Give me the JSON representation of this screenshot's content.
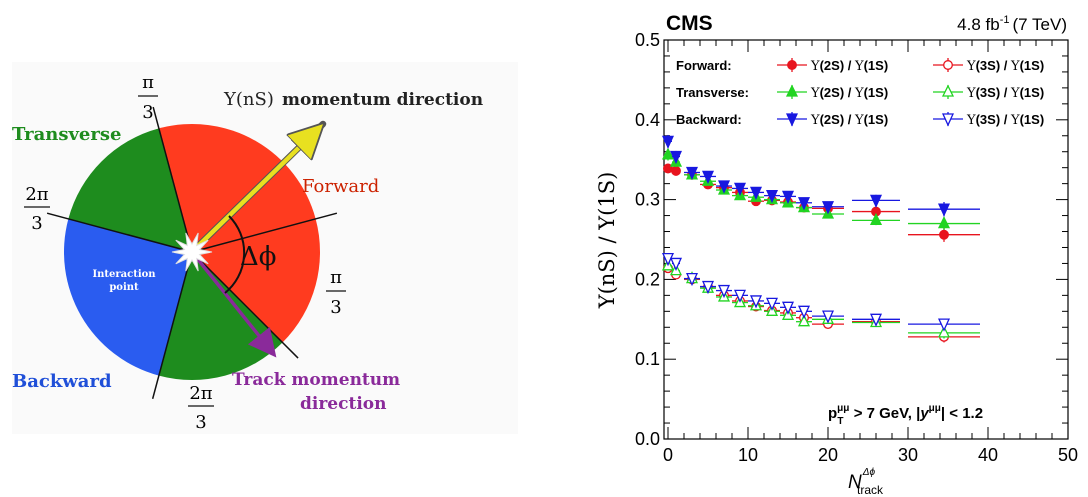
{
  "diagram": {
    "sectors": {
      "forward": "Forward",
      "transverse": "Transverse",
      "backward": "Backward"
    },
    "center_label": [
      "Interaction",
      "point"
    ],
    "delta_phi": "Δϕ",
    "upsilon_arrow": {
      "symbol": "Υ(nS)",
      "text": "momentum direction"
    },
    "track_arrow": [
      "Track momentum",
      "direction"
    ],
    "angles": {
      "pi": "π",
      "two_pi": "2π",
      "three": "3"
    },
    "colors": {
      "forward": "#ff3b1f",
      "transverse": "#1e8c1e",
      "backward": "#2a5cf0",
      "upsilon_arrow": "#e8e020",
      "track_arrow": "#8a2a9a"
    }
  },
  "chart_data": {
    "type": "scatter",
    "experiment": "CMS",
    "lumi": {
      "value": "4.8 fb",
      "exp": "-1",
      "energy": "(7 TeV)"
    },
    "ylabel": "Υ(nS) / Υ(1S)",
    "xlabel": {
      "main": "N",
      "sup": "Δϕ",
      "sub": "track"
    },
    "xlim": [
      -0.5,
      50
    ],
    "ylim": [
      0,
      0.5
    ],
    "x_ticks": [
      0,
      10,
      20,
      30,
      40,
      50
    ],
    "y_ticks": [
      0.0,
      0.1,
      0.2,
      0.3,
      0.4,
      0.5
    ],
    "y_tick_labels": [
      "0.0",
      "0.1",
      "0.2",
      "0.3",
      "0.4",
      "0.5"
    ],
    "cut_label": {
      "p": "p",
      "pSub": "T",
      "pSup": "μμ",
      "mid": " > 7 GeV,  |",
      "y": "y",
      "ySup": "μμ",
      "end": "| < 1.2"
    },
    "legend": {
      "rows": [
        {
          "label": "Forward:",
          "color": "#e8141e"
        },
        {
          "label": "Transverse:",
          "color": "#22d422"
        },
        {
          "label": "Backward:",
          "color": "#1818e0"
        }
      ],
      "ratio2S": {
        "a": "Υ",
        "b": "(2S)",
        "c": " / ",
        "d": "Υ",
        "e": "(1S)"
      },
      "ratio3S": {
        "a": "Υ",
        "b": "(3S)",
        "c": " / ",
        "d": "Υ",
        "e": "(1S)"
      }
    },
    "series": [
      {
        "name": "Forward Υ(2S)/Υ(1S)",
        "color": "#e8141e",
        "marker": "circle-filled",
        "x": [
          0,
          1,
          3,
          5,
          7,
          9,
          11,
          13,
          15,
          17,
          20,
          26,
          34.5
        ],
        "y": [
          0.339,
          0.336,
          0.331,
          0.319,
          0.315,
          0.309,
          0.298,
          0.299,
          0.297,
          0.29,
          0.289,
          0.285,
          0.256
        ],
        "xerr": [
          0.5,
          0.5,
          1,
          1,
          1,
          1,
          1,
          1,
          1,
          1,
          2,
          3,
          4.5
        ],
        "yerr": [
          0.006,
          0.006,
          0.005,
          0.005,
          0.005,
          0.005,
          0.005,
          0.005,
          0.005,
          0.005,
          0.005,
          0.007,
          0.009
        ]
      },
      {
        "name": "Transverse Υ(2S)/Υ(1S)",
        "color": "#22d422",
        "marker": "triangle-filled",
        "x": [
          0,
          1,
          3,
          5,
          7,
          9,
          11,
          13,
          15,
          17,
          20,
          26,
          34.5
        ],
        "y": [
          0.356,
          0.347,
          0.331,
          0.323,
          0.312,
          0.305,
          0.303,
          0.3,
          0.296,
          0.29,
          0.282,
          0.274,
          0.27
        ],
        "xerr": [
          0.5,
          0.5,
          1,
          1,
          1,
          1,
          1,
          1,
          1,
          1,
          2,
          3,
          4.5
        ],
        "yerr": [
          0.007,
          0.006,
          0.005,
          0.005,
          0.005,
          0.005,
          0.005,
          0.005,
          0.005,
          0.005,
          0.005,
          0.006,
          0.008
        ]
      },
      {
        "name": "Backward Υ(2S)/Υ(1S)",
        "color": "#1818e0",
        "marker": "triangle-down-filled",
        "x": [
          0,
          1,
          3,
          5,
          7,
          9,
          11,
          13,
          15,
          17,
          20,
          26,
          34.5
        ],
        "y": [
          0.373,
          0.354,
          0.334,
          0.329,
          0.317,
          0.314,
          0.309,
          0.305,
          0.304,
          0.296,
          0.291,
          0.299,
          0.288
        ],
        "xerr": [
          0.5,
          0.5,
          1,
          1,
          1,
          1,
          1,
          1,
          1,
          1,
          2,
          3,
          4.5
        ],
        "yerr": [
          0.008,
          0.007,
          0.006,
          0.006,
          0.005,
          0.005,
          0.005,
          0.005,
          0.005,
          0.005,
          0.005,
          0.007,
          0.009
        ]
      },
      {
        "name": "Forward Υ(3S)/Υ(1S)",
        "color": "#e8141e",
        "marker": "circle-open",
        "x": [
          0,
          1,
          3,
          5,
          7,
          9,
          11,
          13,
          15,
          17,
          20,
          26,
          34.5
        ],
        "y": [
          0.214,
          0.206,
          0.2,
          0.191,
          0.18,
          0.173,
          0.166,
          0.161,
          0.158,
          0.152,
          0.144,
          0.147,
          0.128
        ],
        "xerr": [
          0.5,
          0.5,
          1,
          1,
          1,
          1,
          1,
          1,
          1,
          1,
          2,
          3,
          4.5
        ],
        "yerr": [
          0.005,
          0.005,
          0.004,
          0.004,
          0.004,
          0.004,
          0.004,
          0.004,
          0.004,
          0.004,
          0.004,
          0.005,
          0.007
        ]
      },
      {
        "name": "Transverse Υ(3S)/Υ(1S)",
        "color": "#22d422",
        "marker": "triangle-open",
        "x": [
          0,
          1,
          3,
          5,
          7,
          9,
          11,
          13,
          15,
          17,
          20,
          26,
          34.5
        ],
        "y": [
          0.217,
          0.211,
          0.201,
          0.189,
          0.178,
          0.171,
          0.167,
          0.16,
          0.155,
          0.147,
          0.15,
          0.146,
          0.133
        ],
        "xerr": [
          0.5,
          0.5,
          1,
          1,
          1,
          1,
          1,
          1,
          1,
          1,
          2,
          3,
          4.5
        ],
        "yerr": [
          0.005,
          0.005,
          0.004,
          0.004,
          0.004,
          0.004,
          0.004,
          0.004,
          0.004,
          0.004,
          0.004,
          0.005,
          0.007
        ]
      },
      {
        "name": "Backward Υ(3S)/Υ(1S)",
        "color": "#1818e0",
        "marker": "triangle-down-open",
        "x": [
          0,
          1,
          3,
          5,
          7,
          9,
          11,
          13,
          15,
          17,
          20,
          26,
          34.5
        ],
        "y": [
          0.226,
          0.22,
          0.201,
          0.191,
          0.186,
          0.18,
          0.173,
          0.17,
          0.165,
          0.16,
          0.154,
          0.15,
          0.144
        ],
        "xerr": [
          0.5,
          0.5,
          1,
          1,
          1,
          1,
          1,
          1,
          1,
          1,
          2,
          3,
          4.5
        ],
        "yerr": [
          0.006,
          0.005,
          0.005,
          0.005,
          0.004,
          0.004,
          0.004,
          0.004,
          0.004,
          0.004,
          0.004,
          0.005,
          0.007
        ]
      }
    ]
  }
}
